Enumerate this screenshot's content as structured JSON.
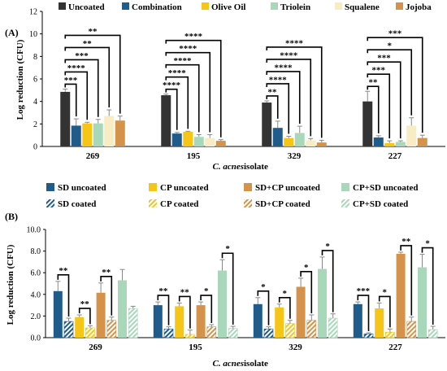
{
  "chart_data": [
    {
      "type": "bar",
      "panel_label": "(A)",
      "ylabel": "Log reduction (CFU)",
      "xlabel_italic": "C. acnes",
      "xlabel_rest": " isolate",
      "ylim": [
        0,
        12
      ],
      "yticks": [
        "0",
        "2",
        "4",
        "6",
        "8",
        "10",
        "12"
      ],
      "categories": [
        "269",
        "195",
        "329",
        "227"
      ],
      "series": [
        {
          "name": "Uncoated",
          "color": "#333333",
          "values": [
            4.85,
            4.55,
            3.9,
            4.0
          ],
          "errors": [
            0.25,
            0.1,
            0.15,
            0.9
          ]
        },
        {
          "name": "Combination",
          "color": "#1f5c8b",
          "values": [
            1.85,
            1.15,
            1.65,
            0.8
          ],
          "errors": [
            0.6,
            0.1,
            0.6,
            0.15
          ]
        },
        {
          "name": "Olive Oil",
          "color": "#f5c518",
          "values": [
            2.05,
            1.3,
            0.75,
            0.3
          ],
          "errors": [
            0.1,
            0.05,
            0.15,
            0.2
          ]
        },
        {
          "name": "Triolein",
          "color": "#a8d8b9",
          "values": [
            2.05,
            0.85,
            1.2,
            0.4
          ],
          "errors": [
            0.35,
            0.2,
            0.6,
            0.1
          ]
        },
        {
          "name": "Squalene",
          "color": "#f7ecc4",
          "values": [
            2.7,
            0.75,
            0.55,
            1.85
          ],
          "errors": [
            0.55,
            0.3,
            0.15,
            0.7
          ]
        },
        {
          "name": "Jojoba",
          "color": "#d4924a",
          "values": [
            2.3,
            0.5,
            0.35,
            0.75
          ],
          "errors": [
            0.4,
            0.1,
            0.2,
            0.25
          ]
        }
      ],
      "brackets": [
        {
          "cat": 0,
          "to": 1,
          "label": "***"
        },
        {
          "cat": 0,
          "to": 2,
          "label": "****"
        },
        {
          "cat": 0,
          "to": 3,
          "label": "***"
        },
        {
          "cat": 0,
          "to": 4,
          "label": "**"
        },
        {
          "cat": 0,
          "to": 5,
          "label": "**"
        },
        {
          "cat": 1,
          "to": 1,
          "label": "****"
        },
        {
          "cat": 1,
          "to": 2,
          "label": "****"
        },
        {
          "cat": 1,
          "to": 3,
          "label": "****"
        },
        {
          "cat": 1,
          "to": 4,
          "label": "****"
        },
        {
          "cat": 1,
          "to": 5,
          "label": "****"
        },
        {
          "cat": 2,
          "to": 1,
          "label": "**"
        },
        {
          "cat": 2,
          "to": 2,
          "label": "****"
        },
        {
          "cat": 2,
          "to": 3,
          "label": "****"
        },
        {
          "cat": 2,
          "to": 4,
          "label": "****"
        },
        {
          "cat": 2,
          "to": 5,
          "label": "****"
        },
        {
          "cat": 3,
          "to": 1,
          "label": "**"
        },
        {
          "cat": 3,
          "to": 2,
          "label": "***"
        },
        {
          "cat": 3,
          "to": 3,
          "label": "***"
        },
        {
          "cat": 3,
          "to": 4,
          "label": "*"
        },
        {
          "cat": 3,
          "to": 5,
          "label": "***"
        }
      ]
    },
    {
      "type": "bar",
      "panel_label": "(B)",
      "ylabel": "Log reduction (CFU)",
      "xlabel_italic": "C. acnes",
      "xlabel_rest": " isolate",
      "ylim": [
        0,
        10
      ],
      "yticks": [
        "0.0",
        "2.0",
        "4.0",
        "6.0",
        "8.0",
        "10.0"
      ],
      "categories": [
        "269",
        "195",
        "329",
        "227"
      ],
      "series": [
        {
          "name": "SD uncoated",
          "color": "#1f5c8b",
          "hatched": false,
          "values": [
            4.3,
            3.0,
            3.1,
            3.1
          ],
          "errors": [
            0.9,
            0.3,
            0.6,
            0.2
          ]
        },
        {
          "name": "SD coated",
          "color": "#1f5c8b",
          "hatched": true,
          "values": [
            1.5,
            0.8,
            0.8,
            0.35
          ],
          "errors": [
            0.3,
            0.2,
            0.2,
            0.1
          ]
        },
        {
          "name": "CP uncoated",
          "color": "#f5c518",
          "hatched": false,
          "values": [
            1.9,
            2.9,
            2.8,
            2.7
          ],
          "errors": [
            0.2,
            0.3,
            0.3,
            0.5
          ]
        },
        {
          "name": "CP  coated",
          "color": "#f5c518",
          "hatched": true,
          "values": [
            0.9,
            0.3,
            1.3,
            0.5
          ],
          "errors": [
            0.2,
            0.4,
            0.3,
            0.3
          ]
        },
        {
          "name": "SD+CP   uncoated",
          "color": "#d4924a",
          "hatched": false,
          "values": [
            4.15,
            3.0,
            4.7,
            7.75
          ],
          "errors": [
            0.9,
            0.3,
            0.8,
            0.15
          ]
        },
        {
          "name": "SD+CP  coated",
          "color": "#d4924a",
          "hatched": true,
          "values": [
            1.6,
            1.0,
            1.6,
            1.5
          ],
          "errors": [
            0.3,
            0.2,
            0.5,
            0.4
          ]
        },
        {
          "name": "CP+SD   uncoated",
          "color": "#a8d8b9",
          "hatched": false,
          "values": [
            5.3,
            6.2,
            6.35,
            6.5
          ],
          "errors": [
            1.0,
            1.0,
            1.1,
            1.2
          ]
        },
        {
          "name": "CP+SD   coated",
          "color": "#a8d8b9",
          "hatched": true,
          "values": [
            2.7,
            0.85,
            1.8,
            0.75
          ],
          "errors": [
            0.2,
            0.2,
            0.4,
            0.3
          ]
        }
      ],
      "brackets": [
        {
          "cat": 0,
          "a": 0,
          "b": 1,
          "label": "**"
        },
        {
          "cat": 0,
          "a": 2,
          "b": 3,
          "label": "**"
        },
        {
          "cat": 0,
          "a": 4,
          "b": 5,
          "label": "**"
        },
        {
          "cat": 1,
          "a": 0,
          "b": 1,
          "label": "**"
        },
        {
          "cat": 1,
          "a": 2,
          "b": 3,
          "label": "**"
        },
        {
          "cat": 1,
          "a": 4,
          "b": 5,
          "label": "*"
        },
        {
          "cat": 1,
          "a": 6,
          "b": 7,
          "label": "*"
        },
        {
          "cat": 2,
          "a": 0,
          "b": 1,
          "label": "*"
        },
        {
          "cat": 2,
          "a": 2,
          "b": 3,
          "label": "*"
        },
        {
          "cat": 2,
          "a": 4,
          "b": 5,
          "label": "*"
        },
        {
          "cat": 2,
          "a": 6,
          "b": 7,
          "label": "*"
        },
        {
          "cat": 3,
          "a": 0,
          "b": 1,
          "label": "***"
        },
        {
          "cat": 3,
          "a": 2,
          "b": 3,
          "label": "*"
        },
        {
          "cat": 3,
          "a": 4,
          "b": 5,
          "label": "**"
        },
        {
          "cat": 3,
          "a": 6,
          "b": 7,
          "label": "*"
        }
      ]
    }
  ]
}
